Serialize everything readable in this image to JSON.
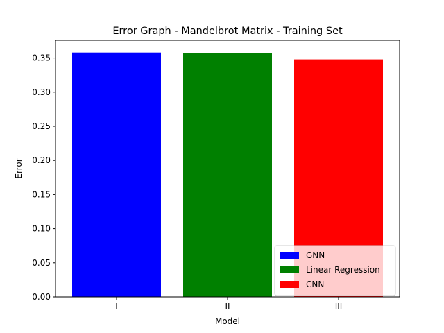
{
  "chart_data": {
    "type": "bar",
    "title": "Error Graph - Mandelbrot Matrix - Training Set",
    "xlabel": "Model",
    "ylabel": "Error",
    "categories": [
      "I",
      "II",
      "III"
    ],
    "series": [
      {
        "name": "GNN",
        "color": "#0000ff",
        "values": [
          0.358,
          null,
          null
        ]
      },
      {
        "name": "Linear Regression",
        "color": "#008000",
        "values": [
          null,
          0.357,
          null
        ]
      },
      {
        "name": "CNN",
        "color": "#ff0000",
        "values": [
          null,
          null,
          0.348
        ]
      }
    ],
    "ylim": [
      0,
      0.376
    ],
    "yticks": [
      "0.00",
      "0.05",
      "0.10",
      "0.15",
      "0.20",
      "0.25",
      "0.30",
      "0.35"
    ],
    "grid": false,
    "legend_position": "lower-right"
  }
}
